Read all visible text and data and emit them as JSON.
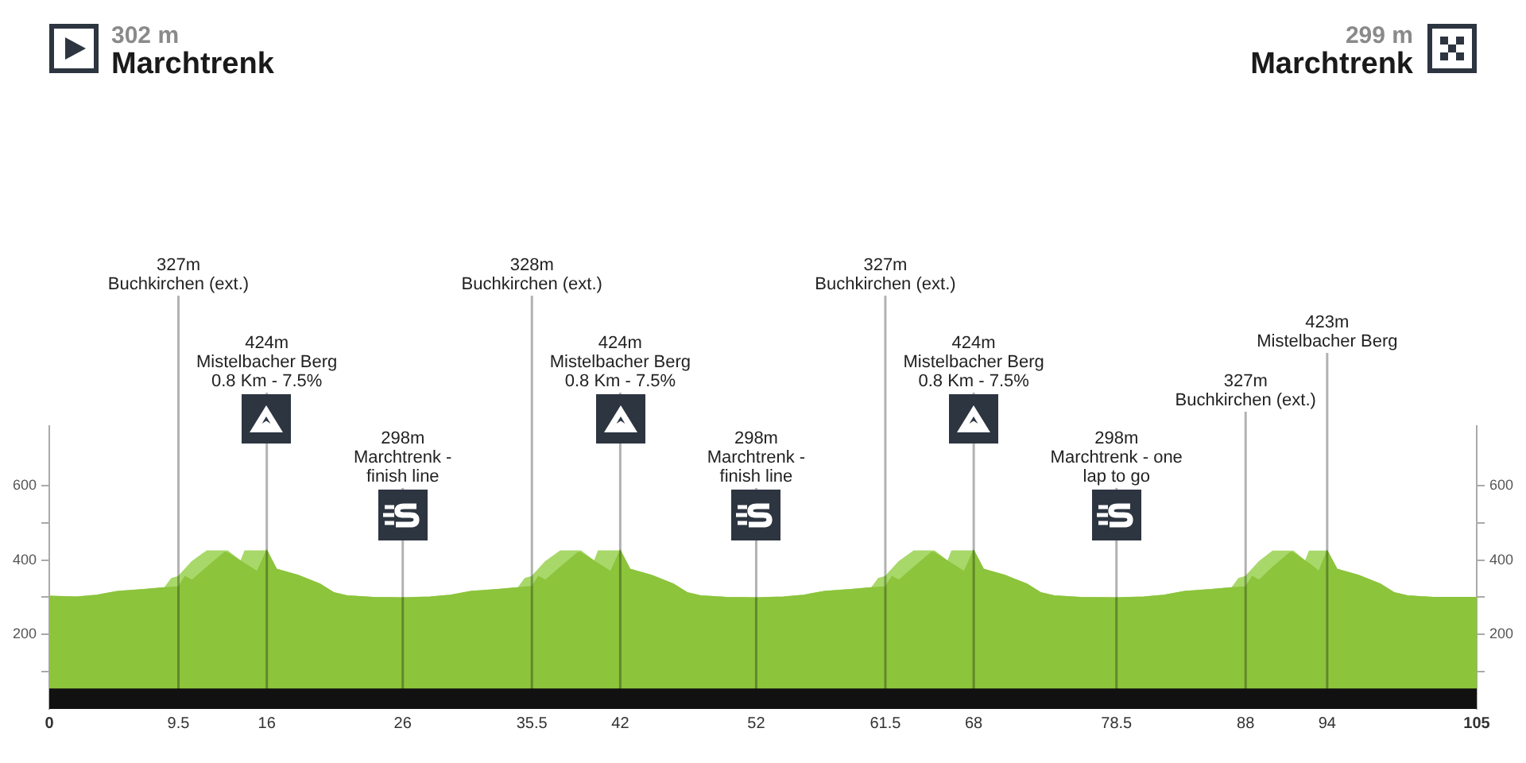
{
  "chart_data": {
    "type": "area",
    "stacked": true,
    "annotations": [
      "302 m\nMarchtrenk",
      "299 m\nMarchtrenk"
    ],
    "x": [
      0,
      2,
      3.5,
      5,
      7,
      8.5,
      9,
      9.5,
      10,
      10.5,
      11.6,
      12.9,
      13.1,
      14.1,
      14.4,
      15.3,
      16,
      16.7,
      18.3,
      19.9,
      20.9,
      21.9,
      23.8,
      26,
      28,
      29.5,
      31,
      33,
      34.5,
      35,
      35.5,
      36,
      36.5,
      37.6,
      38.9,
      39.1,
      40.1,
      40.4,
      41.3,
      42,
      42.7,
      44.3,
      45.9,
      46.9,
      47.9,
      49.8,
      52,
      54,
      55.5,
      57,
      59,
      60.5,
      61,
      61.5,
      62,
      62.5,
      63.6,
      64.9,
      65.1,
      66.1,
      66.4,
      67.3,
      68,
      68.7,
      70.3,
      71.9,
      72.9,
      73.9,
      75.8,
      78.5,
      80.5,
      82,
      83.5,
      85.5,
      87,
      87.5,
      88,
      88.5,
      89,
      90,
      91.3,
      91.5,
      92.4,
      92.7,
      93.4,
      94,
      94.7,
      96.3,
      97.9,
      98.9,
      99.9,
      101.8,
      105
    ],
    "series": [
      {
        "color": "#8cc43c",
        "values": [
          302,
          300,
          305,
          315,
          320,
          325,
          326,
          327,
          355,
          345,
          380,
          420,
          419,
          396,
          389,
          368,
          424,
          375,
          358,
          335,
          312,
          303,
          299,
          298,
          300,
          305,
          315,
          320,
          325,
          327,
          328,
          355,
          345,
          380,
          420,
          419,
          396,
          389,
          368,
          424,
          375,
          358,
          335,
          312,
          303,
          299,
          298,
          300,
          305,
          315,
          320,
          325,
          326,
          327,
          355,
          345,
          380,
          420,
          419,
          396,
          389,
          368,
          424,
          375,
          358,
          335,
          312,
          303,
          299,
          298,
          300,
          305,
          315,
          320,
          325,
          326,
          327,
          355,
          345,
          380,
          420,
          419,
          396,
          389,
          368,
          423,
          375,
          358,
          335,
          312,
          303,
          299,
          299
        ]
      },
      {
        "color": "#a8d86a",
        "values": [
          0,
          0,
          0,
          0,
          0,
          0,
          24,
          28,
          20,
          50,
          44,
          4,
          5,
          0,
          35,
          56,
          0,
          0,
          0,
          0,
          0,
          0,
          0,
          0,
          0,
          0,
          0,
          0,
          0,
          23,
          27,
          20,
          50,
          44,
          4,
          5,
          0,
          35,
          56,
          0,
          0,
          0,
          0,
          0,
          0,
          0,
          0,
          0,
          0,
          0,
          0,
          0,
          24,
          28,
          20,
          50,
          44,
          4,
          5,
          0,
          35,
          56,
          0,
          0,
          0,
          0,
          0,
          0,
          0,
          0,
          0,
          0,
          0,
          0,
          0,
          24,
          28,
          20,
          50,
          43,
          3,
          4,
          0,
          34,
          55,
          0,
          0,
          0,
          0,
          0,
          0,
          0,
          0
        ]
      }
    ],
    "xlim": [
      0,
      105
    ],
    "xticks": [
      0,
      9.5,
      16,
      26,
      35.5,
      42,
      52,
      61.5,
      68,
      78.5,
      88,
      94,
      105
    ],
    "ylim": [
      0,
      760
    ],
    "yticks": [
      {
        "value": 100,
        "label": null
      },
      200,
      {
        "value": 300,
        "label": null
      },
      400,
      {
        "value": 500,
        "label": null
      },
      600
    ],
    "y2lim": [
      0,
      760
    ],
    "y2ticks": [
      {
        "value": 100,
        "label": null
      },
      200,
      {
        "value": 300,
        "label": null
      },
      400,
      {
        "value": 500,
        "label": null
      },
      600
    ],
    "ref_lines": [
      {
        "axis": "x",
        "value": 9.5,
        "label": "327m\nBuchkirchen (ext.)"
      },
      {
        "axis": "x",
        "value": 16,
        "label": "424m\nMistelbacher Berg\n0.8 Km - 7.5%"
      },
      {
        "axis": "x",
        "value": 26,
        "label": "298m\nMarchtrenk -\nfinish line"
      },
      {
        "axis": "x",
        "value": 35.5,
        "label": "328m\nBuchkirchen (ext.)"
      },
      {
        "axis": "x",
        "value": 42,
        "label": "424m\nMistelbacher Berg\n0.8 Km - 7.5%"
      },
      {
        "axis": "x",
        "value": 52,
        "label": "298m\nMarchtrenk -\nfinish line"
      },
      {
        "axis": "x",
        "value": 61.5,
        "label": "327m\nBuchkirchen (ext.)"
      },
      {
        "axis": "x",
        "value": 68,
        "label": "424m\nMistelbacher Berg\n0.8 Km - 7.5%"
      },
      {
        "axis": "x",
        "value": 78.5,
        "label": "298m\nMarchtrenk - one\nlap to go"
      },
      {
        "axis": "x",
        "value": 88,
        "label": "327m\nBuchkirchen (ext.)"
      },
      {
        "axis": "x",
        "value": 94,
        "label": "423m\nMistelbacher Berg"
      }
    ],
    "bands": [
      {
        "axis": "y",
        "from": 0,
        "to": 55,
        "color": "#111111"
      }
    ]
  }
}
